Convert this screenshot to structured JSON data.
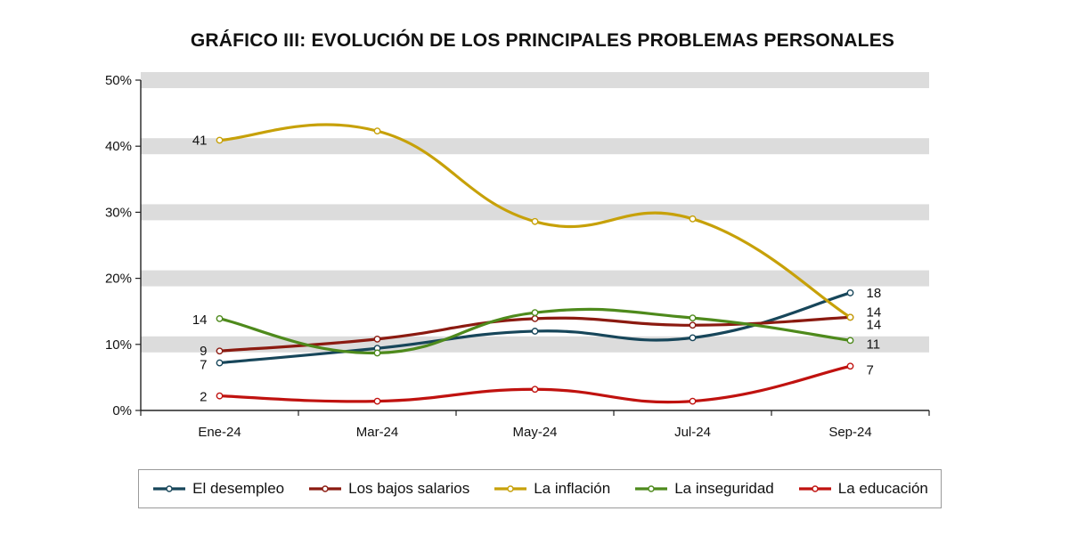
{
  "chart_data": {
    "type": "line",
    "title": "GRÁFICO III: EVOLUCIÓN DE LOS PRINCIPALES PROBLEMAS PERSONALES",
    "xlabel": "",
    "ylabel": "",
    "categories": [
      "Ene-24",
      "Mar-24",
      "May-24",
      "Jul-24",
      "Sep-24"
    ],
    "ylim": [
      0,
      50
    ],
    "yticks": [
      "0%",
      "10%",
      "20%",
      "30%",
      "40%",
      "50%"
    ],
    "legend_position": "bottom",
    "series": [
      {
        "name": "El desempleo",
        "color": "#17465a",
        "values": [
          7.2,
          9.4,
          12.0,
          11.0,
          17.8
        ],
        "labels": [
          {
            "index": 0,
            "text": "7"
          },
          {
            "index": 4,
            "text": "18"
          }
        ]
      },
      {
        "name": "Los bajos salarios",
        "color": "#8b1a10",
        "values": [
          9.0,
          10.8,
          13.9,
          12.9,
          14.1
        ],
        "labels": [
          {
            "index": 0,
            "text": "9"
          },
          {
            "index": 4,
            "text": "14"
          }
        ]
      },
      {
        "name": "La inflación",
        "color": "#c7a109",
        "values": [
          40.9,
          42.3,
          28.6,
          29.0,
          14.1
        ],
        "labels": [
          {
            "index": 0,
            "text": "41"
          },
          {
            "index": 4,
            "text": "14"
          }
        ]
      },
      {
        "name": "La inseguridad",
        "color": "#4e8a1c",
        "values": [
          13.9,
          8.7,
          14.8,
          14.0,
          10.6
        ],
        "labels": [
          {
            "index": 0,
            "text": "14"
          },
          {
            "index": 4,
            "text": "11"
          }
        ]
      },
      {
        "name": "La educación",
        "color": "#c0120f",
        "values": [
          2.2,
          1.4,
          3.2,
          1.4,
          6.7
        ],
        "labels": [
          {
            "index": 0,
            "text": "2"
          },
          {
            "index": 4,
            "text": "7"
          }
        ]
      }
    ]
  }
}
